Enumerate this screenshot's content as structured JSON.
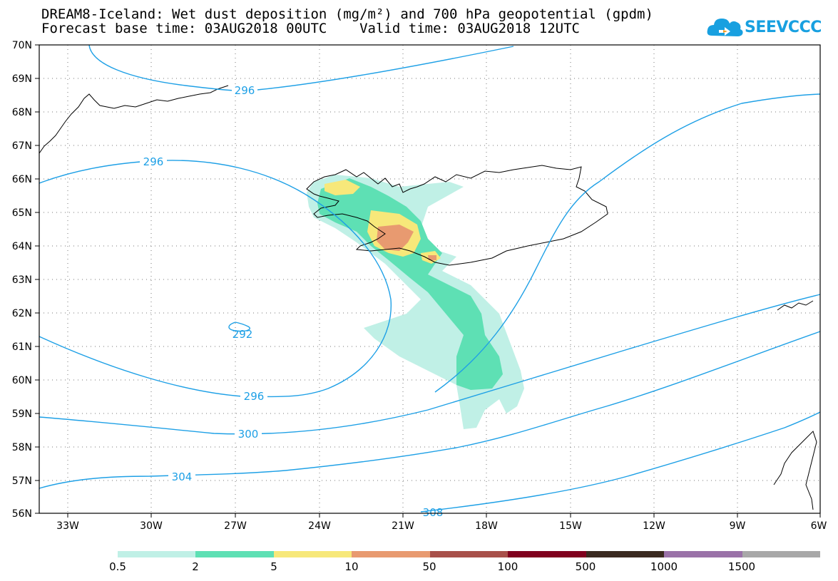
{
  "title_line1": "DREAM8-Iceland: Wet dust deposition (mg/m²) and 700 hPa geopotential (gpdm)",
  "title_line2": "Forecast base time: 03AUG2018 00UTC    Valid time: 03AUG2018 12UTC",
  "logo_text": "SEEVCCC",
  "lat_labels": [
    "70N",
    "69N",
    "68N",
    "67N",
    "66N",
    "65N",
    "64N",
    "63N",
    "62N",
    "61N",
    "60N",
    "59N",
    "58N",
    "57N",
    "56N"
  ],
  "lon_labels": [
    "33W",
    "30W",
    "27W",
    "24W",
    "21W",
    "18W",
    "15W",
    "12W",
    "9W",
    "6W"
  ],
  "contour_labels": [
    "296",
    "296",
    "292",
    "296",
    "300",
    "304",
    "308"
  ],
  "legend": {
    "labels": [
      "0.5",
      "2",
      "5",
      "10",
      "50",
      "100",
      "500",
      "1000",
      "1500"
    ],
    "colors": [
      "#c0f0e6",
      "#5ee0b4",
      "#f7e87a",
      "#e89a70",
      "#a8504a",
      "#80001e",
      "#3a2a20",
      "#9a72a8",
      "#a8a8a8"
    ]
  },
  "colors": {
    "contour": "#1ea0e6",
    "coast": "#000000"
  }
}
